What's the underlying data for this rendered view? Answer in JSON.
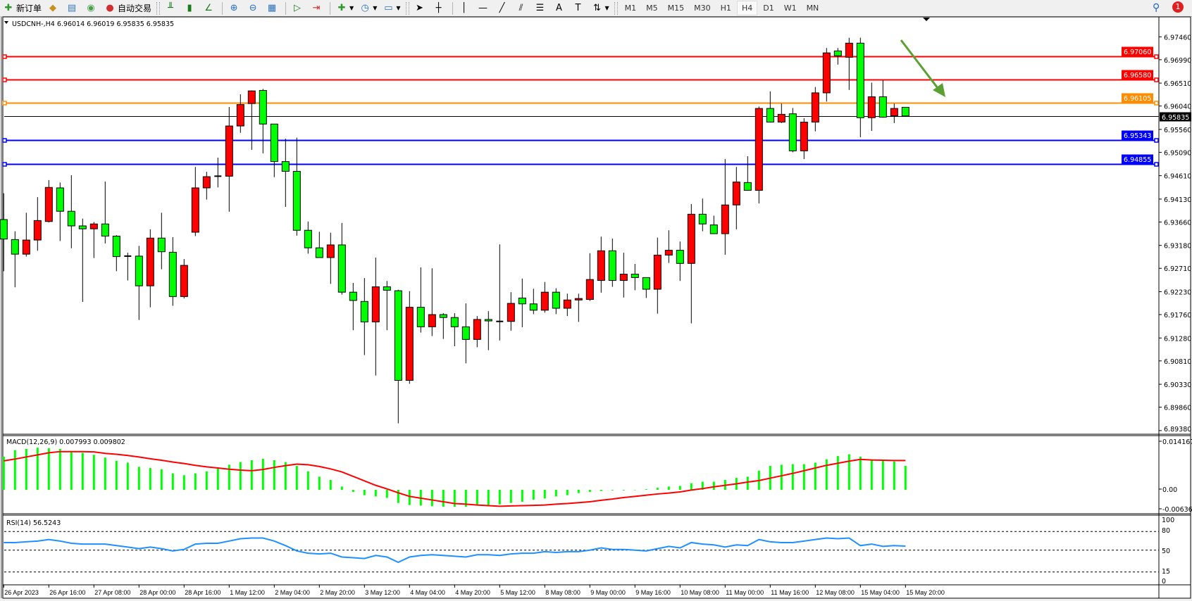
{
  "toolbar": {
    "new_order_label": "新订单",
    "auto_trading_label": "自动交易",
    "icons": [
      "new-order-icon",
      "market-watch-icon",
      "navigator-icon",
      "signals-icon",
      "auto-trading-icon",
      "bar-chart-icon",
      "candlestick-icon",
      "line-chart-icon",
      "zoom-in-icon",
      "zoom-out-icon",
      "tile-windows-icon",
      "auto-scroll-icon",
      "chart-shift-icon",
      "indicators-icon",
      "periods-icon",
      "templates-icon",
      "cursor-icon",
      "crosshair-icon",
      "vertical-line-icon",
      "horizontal-line-icon",
      "trendline-icon",
      "equidistant-channel-icon",
      "fibonacci-icon",
      "text-icon",
      "text-label-icon",
      "arrows-icon"
    ],
    "timeframes": [
      "M1",
      "M5",
      "M15",
      "M30",
      "H1",
      "H4",
      "D1",
      "W1",
      "MN"
    ],
    "active_timeframe": "H4",
    "notification_count": "1"
  },
  "chart_header": "USDCNH-,H4  6.96014 6.96019 6.95835 6.95835",
  "chart_data": [
    {
      "type": "candlestick",
      "symbol": "USDCNH-",
      "timeframe": "H4",
      "bull_color": "#ff0000",
      "bear_color": "#00ff00",
      "ohlc": [
        [
          6.9371,
          6.9425,
          6.9265,
          6.9331
        ],
        [
          6.933,
          6.9347,
          6.9232,
          6.93
        ],
        [
          6.93,
          6.9385,
          6.9295,
          6.9329
        ],
        [
          6.9329,
          6.9417,
          6.9307,
          6.9369
        ],
        [
          6.9367,
          6.9452,
          6.9365,
          6.9437
        ],
        [
          6.9436,
          6.9447,
          6.9327,
          6.9388
        ],
        [
          6.9388,
          6.9462,
          6.9312,
          6.9358
        ],
        [
          6.9358,
          6.9373,
          6.9202,
          6.9352
        ],
        [
          6.9352,
          6.9366,
          6.9292,
          6.9362
        ],
        [
          6.9362,
          6.9449,
          6.9322,
          6.9337
        ],
        [
          6.9337,
          6.9339,
          6.9265,
          6.9295
        ],
        [
          6.9296,
          6.9303,
          6.9246,
          6.9296
        ],
        [
          6.9296,
          6.9317,
          6.9165,
          6.9235
        ],
        [
          6.9235,
          6.9351,
          6.9191,
          6.9333
        ],
        [
          6.9333,
          6.9385,
          6.9269,
          6.9305
        ],
        [
          6.9304,
          6.9335,
          6.9194,
          6.9213
        ],
        [
          6.9213,
          6.929,
          6.9209,
          6.9277
        ],
        [
          6.9345,
          6.9479,
          6.9337,
          6.9436
        ],
        [
          6.9436,
          6.9469,
          6.9412,
          6.9459
        ],
        [
          6.946,
          6.9498,
          6.9437,
          6.946
        ],
        [
          6.946,
          6.9602,
          6.9387,
          6.9563
        ],
        [
          6.9563,
          6.9628,
          6.9549,
          6.9607
        ],
        [
          6.9609,
          6.9636,
          6.9514,
          6.9635
        ],
        [
          6.9636,
          6.9639,
          6.9507,
          6.9567
        ],
        [
          6.9567,
          6.9567,
          6.9458,
          6.949
        ],
        [
          6.949,
          6.9537,
          6.9397,
          6.947
        ],
        [
          6.947,
          6.9539,
          6.9338,
          6.9349
        ],
        [
          6.9349,
          6.9367,
          6.9301,
          6.9313
        ],
        [
          6.9313,
          6.9346,
          6.9293,
          6.9293
        ],
        [
          6.9293,
          6.9344,
          6.9239,
          6.9319
        ],
        [
          6.9319,
          6.9364,
          6.9217,
          6.9222
        ],
        [
          6.9222,
          6.9241,
          6.9144,
          6.9205
        ],
        [
          6.9203,
          6.9251,
          6.9093,
          6.9161
        ],
        [
          6.9161,
          6.9293,
          6.9051,
          6.9233
        ],
        [
          6.9233,
          6.9245,
          6.9144,
          6.9226
        ],
        [
          6.9225,
          6.9227,
          6.8953,
          6.9041
        ],
        [
          6.9041,
          6.9224,
          6.9034,
          6.9191
        ],
        [
          6.9191,
          6.9273,
          6.9139,
          6.9151
        ],
        [
          6.9151,
          6.9271,
          6.9132,
          6.9176
        ],
        [
          6.9176,
          6.9179,
          6.9126,
          6.917
        ],
        [
          6.917,
          6.9179,
          6.9111,
          6.9151
        ],
        [
          6.9151,
          6.9199,
          6.9076,
          6.9125
        ],
        [
          6.9125,
          6.9173,
          6.9109,
          6.9166
        ],
        [
          6.9166,
          6.9183,
          6.9103,
          6.9163
        ],
        [
          6.9162,
          6.932,
          6.9123,
          6.9162
        ],
        [
          6.9162,
          6.9222,
          6.9143,
          6.9199
        ],
        [
          6.921,
          6.925,
          6.915,
          6.9198
        ],
        [
          6.9198,
          6.9229,
          6.9177,
          6.9185
        ],
        [
          6.9185,
          6.9243,
          6.918,
          6.9222
        ],
        [
          6.9222,
          6.923,
          6.9177,
          6.9189
        ],
        [
          6.9189,
          6.9219,
          6.9173,
          6.9206
        ],
        [
          6.9206,
          6.9219,
          6.9161,
          6.9209
        ],
        [
          6.9207,
          6.9302,
          6.9204,
          6.9248
        ],
        [
          6.9246,
          6.9336,
          6.9221,
          6.9307
        ],
        [
          6.9307,
          6.9332,
          6.9233,
          6.9246
        ],
        [
          6.9246,
          6.9303,
          6.9211,
          6.9259
        ],
        [
          6.9259,
          6.928,
          6.9226,
          6.9252
        ],
        [
          6.9252,
          6.9252,
          6.921,
          6.9228
        ],
        [
          6.9228,
          6.9334,
          6.9178,
          6.9298
        ],
        [
          6.9298,
          6.9349,
          6.9282,
          6.9308
        ],
        [
          6.9308,
          6.9326,
          6.9245,
          6.9281
        ],
        [
          6.9281,
          6.9403,
          6.9158,
          6.9382
        ],
        [
          6.9382,
          6.9414,
          6.9347,
          6.9362
        ],
        [
          6.936,
          6.9379,
          6.9342,
          6.9342
        ],
        [
          6.9342,
          6.9495,
          6.9299,
          6.9401
        ],
        [
          6.9401,
          6.9479,
          6.9351,
          6.9448
        ],
        [
          6.9447,
          6.9501,
          6.943,
          6.9431
        ],
        [
          6.9431,
          6.9603,
          6.9404,
          6.9599
        ],
        [
          6.9599,
          6.9634,
          6.957,
          6.9571
        ],
        [
          6.9571,
          6.9609,
          6.9569,
          6.9587
        ],
        [
          6.9588,
          6.96,
          6.9509,
          6.9512
        ],
        [
          6.9512,
          6.9579,
          6.9495,
          6.9571
        ],
        [
          6.9571,
          6.9643,
          6.9552,
          6.9631
        ],
        [
          6.9631,
          6.9723,
          6.9613,
          6.9713
        ],
        [
          6.9717,
          6.9723,
          6.9689,
          6.9707
        ],
        [
          6.9704,
          6.9744,
          6.9637,
          6.9733
        ],
        [
          6.9733,
          6.9744,
          6.954,
          6.958
        ],
        [
          6.958,
          6.9652,
          6.9553,
          6.9623
        ],
        [
          6.9623,
          6.9657,
          6.958,
          6.9581
        ],
        [
          6.9584,
          6.9609,
          6.9569,
          6.9599
        ],
        [
          6.96014,
          6.96019,
          6.95835,
          6.95835
        ]
      ],
      "current_price": {
        "value": 6.95835,
        "label": "6.95835"
      },
      "price_ticks": [
        "6.97460",
        "6.96990",
        "6.96510",
        "6.96040",
        "6.95560",
        "6.95090",
        "6.94610",
        "6.94130",
        "6.93660",
        "6.93180",
        "6.92710",
        "6.92230",
        "6.91760",
        "6.91280",
        "6.90810",
        "6.90330",
        "6.89860",
        "6.89380"
      ],
      "horizontal_lines": [
        {
          "value": 6.9706,
          "label": "6.97060",
          "color": "#ff0000"
        },
        {
          "value": 6.9658,
          "label": "6.96580",
          "color": "#ff0000"
        },
        {
          "value": 6.96105,
          "label": "6.96105",
          "color": "#ff8c00"
        },
        {
          "value": 6.95343,
          "label": "6.95343",
          "color": "#0000ff"
        },
        {
          "value": 6.94855,
          "label": "6.94855",
          "color": "#0000ff"
        }
      ],
      "arrow": {
        "color": "#5aa032",
        "direction": "down-right"
      },
      "time_labels": [
        "26 Apr 2023",
        "26 Apr 16:00",
        "27 Apr 08:00",
        "28 Apr 00:00",
        "28 Apr 16:00",
        "1 May 12:00",
        "2 May 04:00",
        "2 May 20:00",
        "3 May 12:00",
        "4 May 04:00",
        "4 May 20:00",
        "5 May 12:00",
        "8 May 08:00",
        "9 May 00:00",
        "9 May 16:00",
        "10 May 08:00",
        "11 May 00:00",
        "11 May 16:00",
        "12 May 08:00",
        "15 May 04:00",
        "15 May 20:00"
      ]
    },
    {
      "type": "bar",
      "indicator_label": "MACD(12,26,9) 0.007993 0.009802",
      "histogram_color": "#00ff00",
      "signal_color": "#ff0000",
      "ylim": [
        -0.006363,
        0.014167
      ],
      "y_ticks": [
        "0.014167",
        "0.00",
        "-0.006363"
      ],
      "histogram": [
        0.0111,
        0.0133,
        0.0137,
        0.0141,
        0.0139,
        0.0137,
        0.013,
        0.0124,
        0.0117,
        0.0108,
        0.0097,
        0.0091,
        0.0077,
        0.0073,
        0.0069,
        0.0055,
        0.0049,
        0.0055,
        0.0062,
        0.0075,
        0.0084,
        0.0093,
        0.0099,
        0.0104,
        0.0099,
        0.0093,
        0.008,
        0.0062,
        0.0044,
        0.0033,
        0.0011,
        -0.0007,
        -0.0018,
        -0.0022,
        -0.0027,
        -0.0044,
        -0.0051,
        -0.0053,
        -0.0055,
        -0.0057,
        -0.0057,
        -0.0057,
        -0.0053,
        -0.0051,
        -0.0049,
        -0.0044,
        -0.004,
        -0.0033,
        -0.0029,
        -0.0022,
        -0.0018,
        -0.0011,
        -0.0007,
        -0.0004,
        -0.0002,
        -0.0002,
        0.0,
        0.0002,
        0.0007,
        0.0011,
        0.0013,
        0.0022,
        0.0027,
        0.0027,
        0.0033,
        0.004,
        0.0044,
        0.0064,
        0.008,
        0.0084,
        0.0086,
        0.0086,
        0.0091,
        0.0102,
        0.0113,
        0.0119,
        0.0111,
        0.0102,
        0.0099,
        0.0095,
        0.008
      ],
      "signal": [
        0.0097,
        0.0103,
        0.011,
        0.0117,
        0.0124,
        0.0128,
        0.0128,
        0.0128,
        0.0127,
        0.0122,
        0.0119,
        0.0115,
        0.011,
        0.0104,
        0.0099,
        0.0093,
        0.0088,
        0.0082,
        0.0077,
        0.0073,
        0.0069,
        0.0066,
        0.0064,
        0.0068,
        0.0075,
        0.0081,
        0.0086,
        0.0084,
        0.0078,
        0.007,
        0.006,
        0.0045,
        0.003,
        0.0015,
        0.0003,
        -0.001,
        -0.0022,
        -0.0028,
        -0.0034,
        -0.004,
        -0.0046,
        -0.0048,
        -0.0051,
        -0.0053,
        -0.0055,
        -0.0054,
        -0.0053,
        -0.0052,
        -0.0051,
        -0.0048,
        -0.0046,
        -0.0043,
        -0.004,
        -0.0035,
        -0.0031,
        -0.0026,
        -0.0022,
        -0.0018,
        -0.0014,
        -0.0011,
        -0.0007,
        -0.0001,
        0.0004,
        0.001,
        0.0015,
        0.002,
        0.0026,
        0.0031,
        0.0039,
        0.0047,
        0.0055,
        0.0064,
        0.0073,
        0.0082,
        0.0089,
        0.0096,
        0.0102,
        0.01,
        0.0099,
        0.0098,
        0.0098
      ]
    },
    {
      "type": "line",
      "indicator_label": "RSI(14) 56.5243",
      "line_color": "#1e90ff",
      "ylim": [
        0,
        100
      ],
      "y_ticks": [
        "100",
        "80",
        "50",
        "15",
        "0"
      ],
      "levels": [
        80,
        50,
        15
      ],
      "values": [
        62.2,
        62.2,
        63.4,
        64.6,
        67.1,
        64.6,
        61.0,
        59.8,
        59.8,
        59.8,
        57.3,
        54.9,
        52.4,
        54.9,
        52.4,
        48.8,
        51.2,
        59.8,
        61.0,
        61.0,
        64.6,
        68.3,
        69.5,
        69.5,
        64.6,
        57.3,
        48.8,
        45.1,
        43.9,
        45.1,
        39.0,
        37.8,
        36.6,
        41.5,
        39.0,
        30.5,
        39.0,
        41.5,
        42.7,
        41.5,
        40.2,
        39.0,
        42.7,
        42.7,
        41.5,
        43.9,
        45.1,
        45.1,
        47.6,
        46.3,
        47.6,
        47.6,
        50.0,
        53.7,
        51.2,
        51.2,
        50.0,
        48.8,
        52.4,
        56.1,
        53.7,
        62.2,
        59.8,
        58.5,
        54.9,
        58.5,
        57.3,
        67.1,
        63.4,
        62.2,
        62.2,
        64.6,
        67.1,
        69.5,
        68.3,
        69.5,
        57.3,
        59.8,
        56.1,
        57.3,
        56.5
      ]
    }
  ]
}
